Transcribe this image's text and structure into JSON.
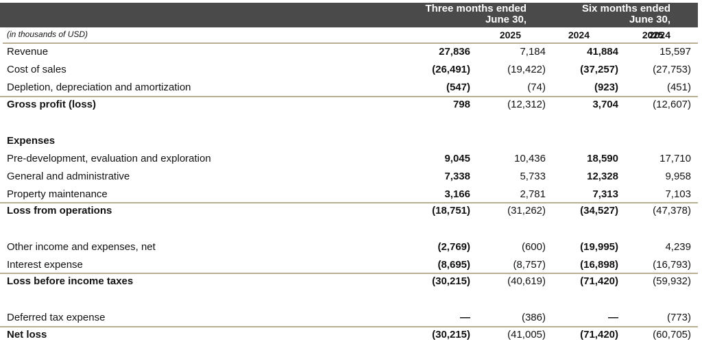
{
  "header": {
    "group1_line1": "Three months ended",
    "group1_line2": "June 30,",
    "group2_line1": "Six months ended",
    "group2_line2": "June 30,",
    "units": "(in thousands of USD)",
    "years": [
      "2025",
      "2024",
      "2025",
      "2024"
    ]
  },
  "rows": [
    {
      "label": "Revenue",
      "values": [
        "27,836",
        "7,184",
        "41,884",
        "15,597"
      ]
    },
    {
      "label": "Cost of sales",
      "values": [
        "(26,491)",
        "(19,422)",
        "(37,257)",
        "(27,753)"
      ]
    },
    {
      "label": "Depletion, depreciation and amortization",
      "values": [
        "(547)",
        "(74)",
        "(923)",
        "(451)"
      ]
    },
    {
      "label": "Gross profit (loss)",
      "values": [
        "798",
        "(12,312)",
        "3,704",
        "(12,607)"
      ]
    },
    {
      "label": "Expenses",
      "values": [
        "",
        "",
        "",
        ""
      ]
    },
    {
      "label": "Pre-development, evaluation and exploration",
      "values": [
        "9,045",
        "10,436",
        "18,590",
        "17,710"
      ]
    },
    {
      "label": "General and administrative",
      "values": [
        "7,338",
        "5,733",
        "12,328",
        "9,958"
      ]
    },
    {
      "label": "Property maintenance",
      "values": [
        "3,166",
        "2,781",
        "7,313",
        "7,103"
      ]
    },
    {
      "label": "Loss from operations",
      "values": [
        "(18,751)",
        "(31,262)",
        "(34,527)",
        "(47,378)"
      ]
    },
    {
      "label": "Other income and expenses, net",
      "values": [
        "(2,769)",
        "(600)",
        "(19,995)",
        "4,239"
      ]
    },
    {
      "label": "Interest expense",
      "values": [
        "(8,695)",
        "(8,757)",
        "(16,898)",
        "(16,793)"
      ]
    },
    {
      "label": "Loss before income taxes",
      "values": [
        "(30,215)",
        "(40,619)",
        "(71,420)",
        "(59,932)"
      ]
    },
    {
      "label": "Deferred tax expense",
      "values": [
        "—",
        "(386)",
        "—",
        "(773)"
      ]
    },
    {
      "label": "Net loss",
      "values": [
        "(30,215)",
        "(41,005)",
        "(71,420)",
        "(60,705)"
      ]
    }
  ]
}
